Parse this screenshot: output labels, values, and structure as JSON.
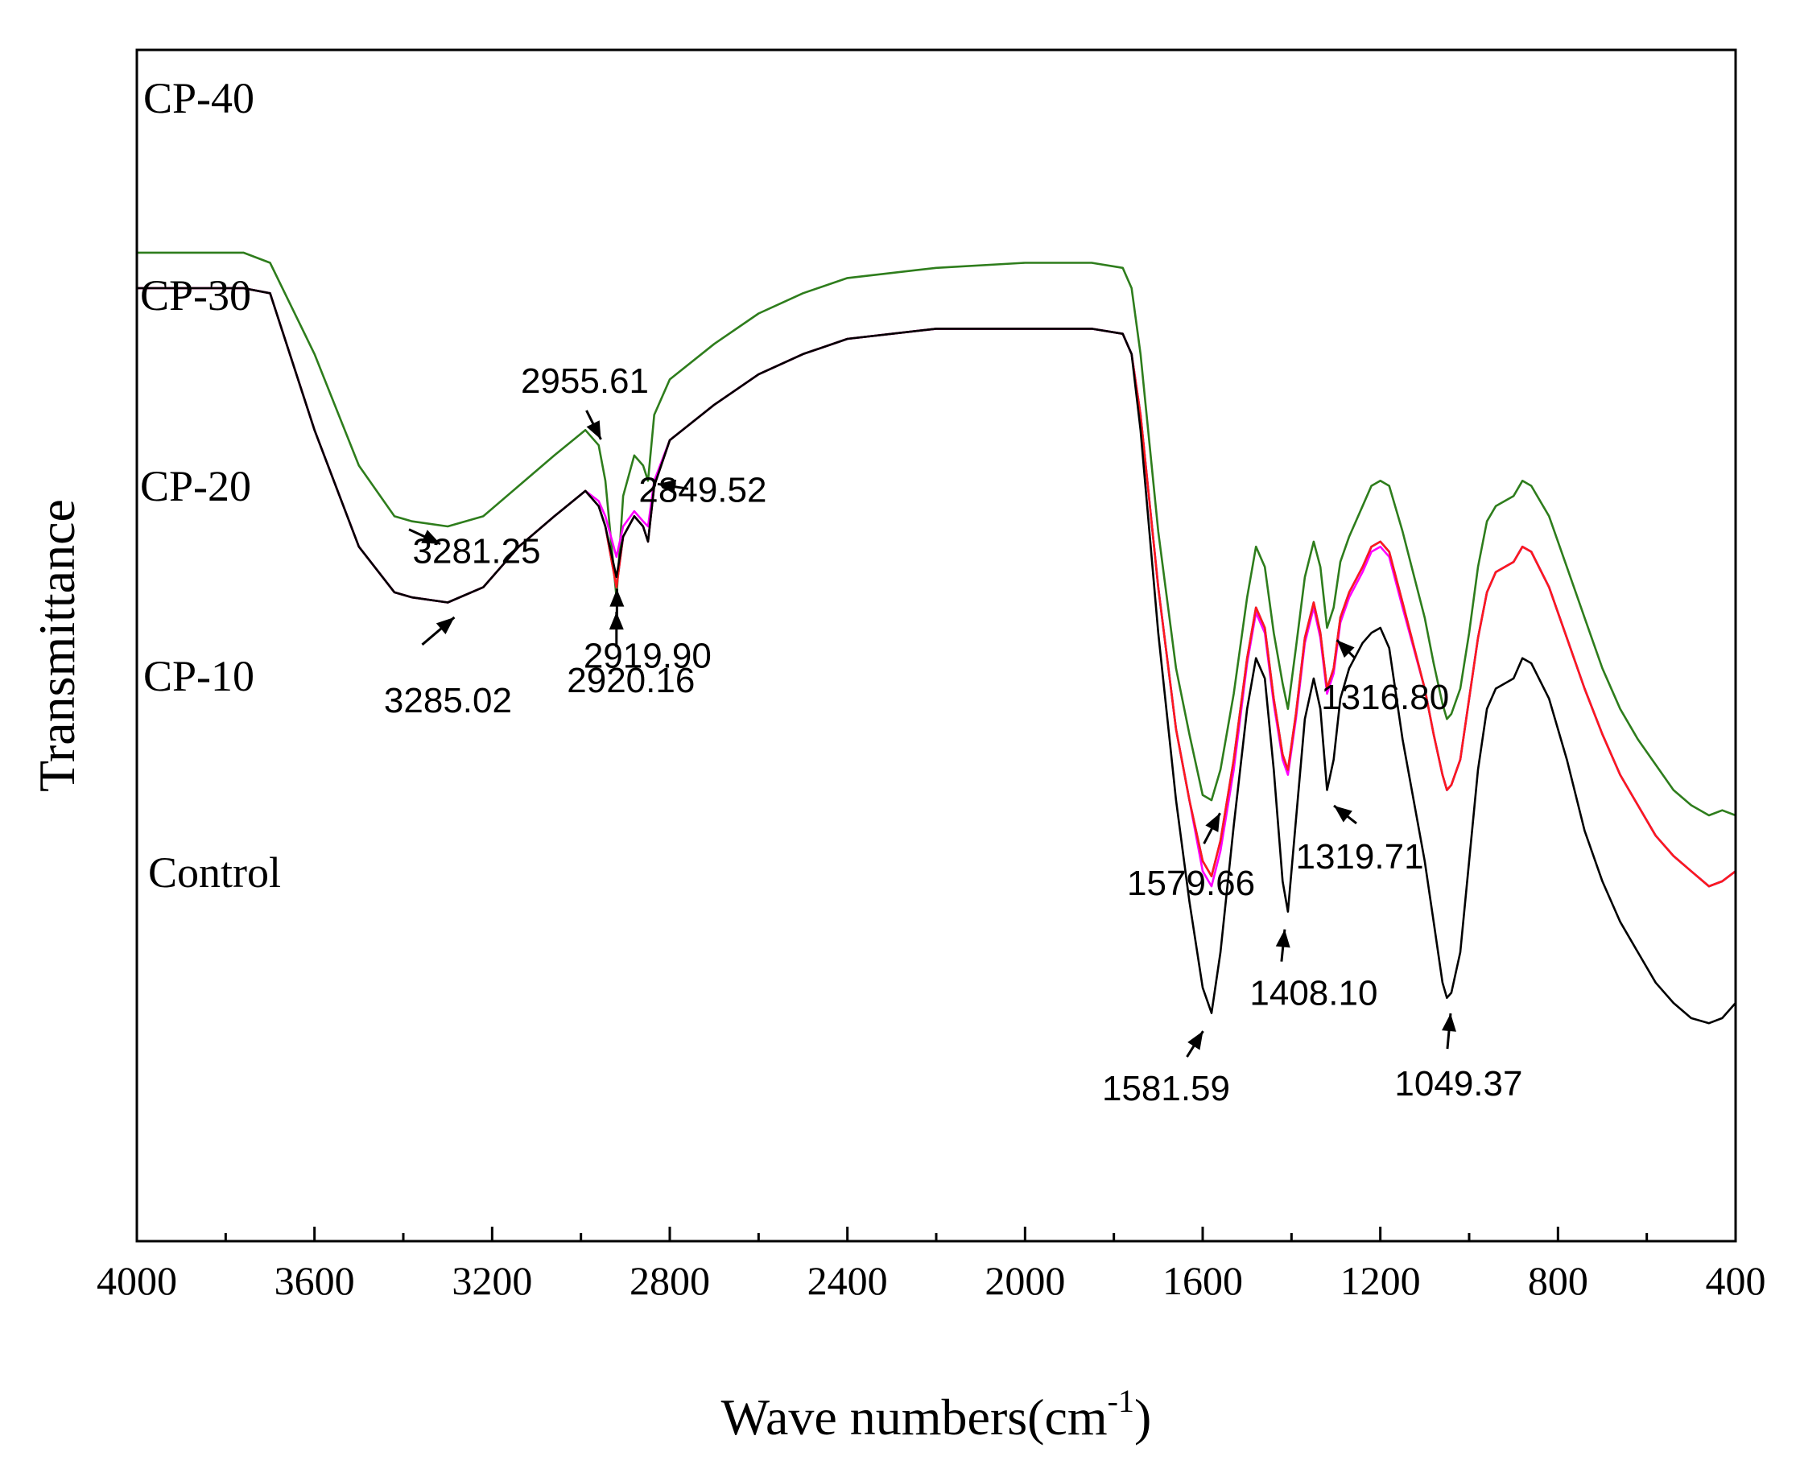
{
  "chart_data": {
    "type": "line",
    "title": "",
    "xlabel": "Wave numbers(cm",
    "xlabel_sup": "-1",
    "xlabel_close": ")",
    "ylabel": "Transmittance",
    "xlim": [
      4000,
      400
    ],
    "x_reversed": true,
    "y_ticks_shown": false,
    "grid": false,
    "x_ticks": [
      4000,
      3600,
      3200,
      2800,
      2400,
      2000,
      1600,
      1200,
      800,
      400
    ],
    "series": [
      {
        "name": "CP-40",
        "color": "#2e7d1c",
        "offset": 4,
        "x": [
          4000,
          3760,
          3700,
          3600,
          3500,
          3420,
          3380,
          3300,
          3220,
          3140,
          3060,
          2990,
          2960,
          2945,
          2920,
          2905,
          2880,
          2860,
          2849,
          2835,
          2800,
          2700,
          2600,
          2500,
          2400,
          2200,
          2000,
          1850,
          1780,
          1760,
          1740,
          1700,
          1660,
          1630,
          1600,
          1580,
          1560,
          1530,
          1500,
          1480,
          1460,
          1440,
          1420,
          1408,
          1390,
          1370,
          1350,
          1335,
          1320,
          1305,
          1290,
          1270,
          1240,
          1220,
          1200,
          1180,
          1150,
          1100,
          1080,
          1060,
          1050,
          1040,
          1020,
          1000,
          980,
          960,
          940,
          900,
          880,
          860,
          820,
          780,
          740,
          700,
          660,
          620,
          580,
          540,
          500,
          460,
          430,
          400
        ],
        "y": [
          3.5,
          3.5,
          3.48,
          3.3,
          3.08,
          2.98,
          2.97,
          2.96,
          2.98,
          3.04,
          3.1,
          3.15,
          3.12,
          3.05,
          2.82,
          3.02,
          3.1,
          3.08,
          3.05,
          3.18,
          3.25,
          3.32,
          3.38,
          3.42,
          3.45,
          3.47,
          3.48,
          3.48,
          3.47,
          3.43,
          3.3,
          2.95,
          2.68,
          2.55,
          2.43,
          2.42,
          2.48,
          2.63,
          2.82,
          2.92,
          2.88,
          2.75,
          2.65,
          2.6,
          2.72,
          2.86,
          2.93,
          2.88,
          2.76,
          2.8,
          2.89,
          2.94,
          3.0,
          3.04,
          3.05,
          3.04,
          2.95,
          2.78,
          2.69,
          2.61,
          2.58,
          2.59,
          2.64,
          2.75,
          2.88,
          2.97,
          3.0,
          3.02,
          3.05,
          3.04,
          2.98,
          2.88,
          2.78,
          2.68,
          2.6,
          2.54,
          2.49,
          2.44,
          2.41,
          2.39,
          2.4,
          2.39
        ]
      },
      {
        "name": "CP-30",
        "color": "#ff00ff",
        "offset": 3,
        "x": [
          4000,
          3760,
          3700,
          3600,
          3500,
          3420,
          3380,
          3300,
          3220,
          3140,
          3060,
          2990,
          2960,
          2945,
          2920,
          2905,
          2880,
          2860,
          2849,
          2835,
          2800,
          2700,
          2600,
          2500,
          2400,
          2200,
          2000,
          1850,
          1780,
          1760,
          1740,
          1700,
          1660,
          1630,
          1600,
          1580,
          1560,
          1530,
          1500,
          1480,
          1460,
          1440,
          1420,
          1408,
          1390,
          1370,
          1350,
          1335,
          1320,
          1305,
          1290,
          1270,
          1240,
          1220,
          1200,
          1180,
          1150,
          1100,
          1080,
          1060,
          1050,
          1040,
          1020,
          1000,
          980,
          960,
          940,
          900,
          880,
          860,
          820,
          780,
          740,
          700,
          660,
          620,
          580,
          540,
          500,
          460,
          430,
          400
        ],
        "y": [
          3.43,
          3.43,
          3.42,
          3.15,
          2.92,
          2.83,
          2.82,
          2.81,
          2.84,
          2.92,
          2.98,
          3.03,
          3.01,
          2.98,
          2.9,
          2.96,
          2.99,
          2.97,
          2.96,
          3.05,
          3.13,
          3.2,
          3.26,
          3.3,
          3.33,
          3.35,
          3.35,
          3.35,
          3.34,
          3.3,
          3.18,
          2.84,
          2.56,
          2.42,
          2.28,
          2.25,
          2.32,
          2.48,
          2.69,
          2.79,
          2.75,
          2.61,
          2.5,
          2.47,
          2.58,
          2.73,
          2.8,
          2.74,
          2.63,
          2.67,
          2.77,
          2.82,
          2.87,
          2.91,
          2.92,
          2.9,
          2.8,
          2.64,
          2.55,
          2.47,
          2.44,
          2.45,
          2.5,
          2.62,
          2.74,
          2.83,
          2.87,
          2.89,
          2.92,
          2.91,
          2.84,
          2.74,
          2.64,
          2.55,
          2.47,
          2.41,
          2.35,
          2.31,
          2.28,
          2.25,
          2.26,
          2.28
        ]
      },
      {
        "name": "CP-20",
        "color": "#1a1aff",
        "offset": 2,
        "x": [
          4000,
          3760,
          3700,
          3600,
          3500,
          3420,
          3380,
          3300,
          3220,
          3140,
          3060,
          2990,
          2960,
          2945,
          2920,
          2905,
          2880,
          2860,
          2849,
          2835,
          2800,
          2700,
          2600,
          2500,
          2400,
          2200,
          2000,
          1850,
          1780,
          1760,
          1740,
          1700,
          1660,
          1630,
          1600,
          1580,
          1560,
          1530,
          1500,
          1480,
          1460,
          1440,
          1420,
          1408,
          1390,
          1370,
          1350,
          1335,
          1320,
          1305,
          1290,
          1270,
          1240,
          1220,
          1200,
          1180,
          1150,
          1100,
          1080,
          1060,
          1050,
          1040,
          1020,
          1000,
          980,
          960,
          940,
          900,
          880,
          860,
          820,
          780,
          740,
          700,
          660,
          620,
          580,
          540,
          500,
          460,
          430,
          400
        ],
        "y": [
          3.43,
          3.43,
          3.42,
          3.15,
          2.92,
          2.83,
          2.82,
          2.81,
          2.84,
          2.92,
          2.98,
          3.03,
          3.0,
          2.96,
          2.84,
          2.94,
          2.98,
          2.96,
          2.93,
          3.04,
          3.13,
          3.2,
          3.26,
          3.3,
          3.33,
          3.35,
          3.35,
          3.35,
          3.34,
          3.3,
          3.18,
          2.84,
          2.56,
          2.42,
          2.3,
          2.27,
          2.34,
          2.5,
          2.7,
          2.8,
          2.76,
          2.62,
          2.51,
          2.48,
          2.59,
          2.74,
          2.81,
          2.75,
          2.64,
          2.68,
          2.78,
          2.83,
          2.88,
          2.92,
          2.93,
          2.91,
          2.81,
          2.64,
          2.55,
          2.47,
          2.44,
          2.45,
          2.5,
          2.62,
          2.74,
          2.83,
          2.87,
          2.89,
          2.92,
          2.91,
          2.84,
          2.74,
          2.64,
          2.55,
          2.47,
          2.41,
          2.35,
          2.31,
          2.28,
          2.25,
          2.26,
          2.28
        ]
      },
      {
        "name": "CP-10",
        "color": "#ff1a1a",
        "offset": 1,
        "x": [
          4000,
          3760,
          3700,
          3600,
          3500,
          3420,
          3380,
          3300,
          3220,
          3140,
          3060,
          2990,
          2960,
          2945,
          2920,
          2905,
          2880,
          2860,
          2849,
          2835,
          2800,
          2700,
          2600,
          2500,
          2400,
          2200,
          2000,
          1850,
          1780,
          1760,
          1740,
          1700,
          1660,
          1630,
          1600,
          1580,
          1560,
          1530,
          1500,
          1480,
          1460,
          1440,
          1420,
          1408,
          1390,
          1370,
          1350,
          1335,
          1320,
          1305,
          1290,
          1270,
          1240,
          1220,
          1200,
          1180,
          1150,
          1100,
          1080,
          1060,
          1050,
          1040,
          1020,
          1000,
          980,
          960,
          940,
          900,
          880,
          860,
          820,
          780,
          740,
          700,
          660,
          620,
          580,
          540,
          500,
          460,
          430,
          400
        ],
        "y": [
          3.43,
          3.43,
          3.42,
          3.15,
          2.92,
          2.83,
          2.82,
          2.81,
          2.84,
          2.92,
          2.98,
          3.03,
          3.0,
          2.96,
          2.84,
          2.94,
          2.98,
          2.96,
          2.93,
          3.04,
          3.13,
          3.2,
          3.26,
          3.3,
          3.33,
          3.35,
          3.35,
          3.35,
          3.34,
          3.3,
          3.18,
          2.84,
          2.56,
          2.42,
          2.3,
          2.27,
          2.34,
          2.5,
          2.7,
          2.8,
          2.76,
          2.62,
          2.51,
          2.48,
          2.59,
          2.74,
          2.81,
          2.75,
          2.64,
          2.68,
          2.78,
          2.83,
          2.88,
          2.92,
          2.93,
          2.91,
          2.81,
          2.64,
          2.55,
          2.47,
          2.44,
          2.45,
          2.5,
          2.62,
          2.74,
          2.83,
          2.87,
          2.89,
          2.92,
          2.91,
          2.84,
          2.74,
          2.64,
          2.55,
          2.47,
          2.41,
          2.35,
          2.31,
          2.28,
          2.25,
          2.26,
          2.28
        ]
      },
      {
        "name": "Control",
        "color": "#000000",
        "offset": 0,
        "x": [
          4000,
          3760,
          3700,
          3600,
          3500,
          3420,
          3380,
          3300,
          3220,
          3140,
          3060,
          2990,
          2960,
          2945,
          2920,
          2905,
          2880,
          2860,
          2849,
          2835,
          2800,
          2700,
          2600,
          2500,
          2400,
          2200,
          2000,
          1850,
          1780,
          1760,
          1740,
          1700,
          1660,
          1630,
          1600,
          1580,
          1560,
          1530,
          1500,
          1480,
          1460,
          1440,
          1420,
          1408,
          1390,
          1370,
          1350,
          1335,
          1320,
          1305,
          1290,
          1270,
          1240,
          1220,
          1200,
          1180,
          1150,
          1100,
          1080,
          1060,
          1050,
          1040,
          1020,
          1000,
          980,
          960,
          940,
          900,
          880,
          860,
          820,
          780,
          740,
          700,
          660,
          620,
          580,
          540,
          500,
          460,
          430,
          400
        ],
        "y": [
          3.43,
          3.43,
          3.42,
          3.15,
          2.92,
          2.83,
          2.82,
          2.81,
          2.84,
          2.92,
          2.98,
          3.03,
          3.0,
          2.96,
          2.86,
          2.94,
          2.98,
          2.96,
          2.93,
          3.04,
          3.13,
          3.2,
          3.26,
          3.3,
          3.33,
          3.35,
          3.35,
          3.35,
          3.34,
          3.3,
          3.15,
          2.75,
          2.42,
          2.22,
          2.05,
          2.0,
          2.12,
          2.37,
          2.6,
          2.7,
          2.66,
          2.48,
          2.26,
          2.2,
          2.38,
          2.58,
          2.66,
          2.6,
          2.44,
          2.5,
          2.62,
          2.68,
          2.73,
          2.75,
          2.76,
          2.72,
          2.54,
          2.3,
          2.18,
          2.06,
          2.03,
          2.04,
          2.12,
          2.3,
          2.48,
          2.6,
          2.64,
          2.66,
          2.7,
          2.69,
          2.62,
          2.5,
          2.36,
          2.26,
          2.18,
          2.12,
          2.06,
          2.02,
          1.99,
          1.98,
          1.99,
          2.02
        ]
      }
    ],
    "annotations": [
      {
        "text": "2955.61",
        "series": 0,
        "tip_x": 2955,
        "dir": "up"
      },
      {
        "text": "3281.25",
        "series": 0,
        "tip_x": 3380,
        "dir": "down-left"
      },
      {
        "text": "2849.52",
        "series": 0,
        "tip_x": 2849,
        "dir": "right"
      },
      {
        "text": "2920.16",
        "series": 0,
        "tip_x": 2920,
        "dir": "down"
      },
      {
        "text": "1316.80",
        "series": 0,
        "tip_x": 1316,
        "dir": "down-right"
      },
      {
        "text": "1579.66",
        "series": 0,
        "tip_x": 1579,
        "dir": "down-left"
      },
      {
        "text": "3285.02",
        "series": 4,
        "tip_x": 3285,
        "dir": "down-left"
      },
      {
        "text": "2919.90",
        "series": 4,
        "tip_x": 2919,
        "dir": "down"
      },
      {
        "text": "1319.71",
        "series": 4,
        "tip_x": 1319,
        "dir": "down-right"
      },
      {
        "text": "1581.59",
        "series": 4,
        "tip_x": 1581,
        "dir": "down-left"
      },
      {
        "text": "1408.10",
        "series": 4,
        "tip_x": 1408,
        "dir": "down"
      },
      {
        "text": "1049.37",
        "series": 4,
        "tip_x": 1049,
        "dir": "down"
      }
    ]
  }
}
